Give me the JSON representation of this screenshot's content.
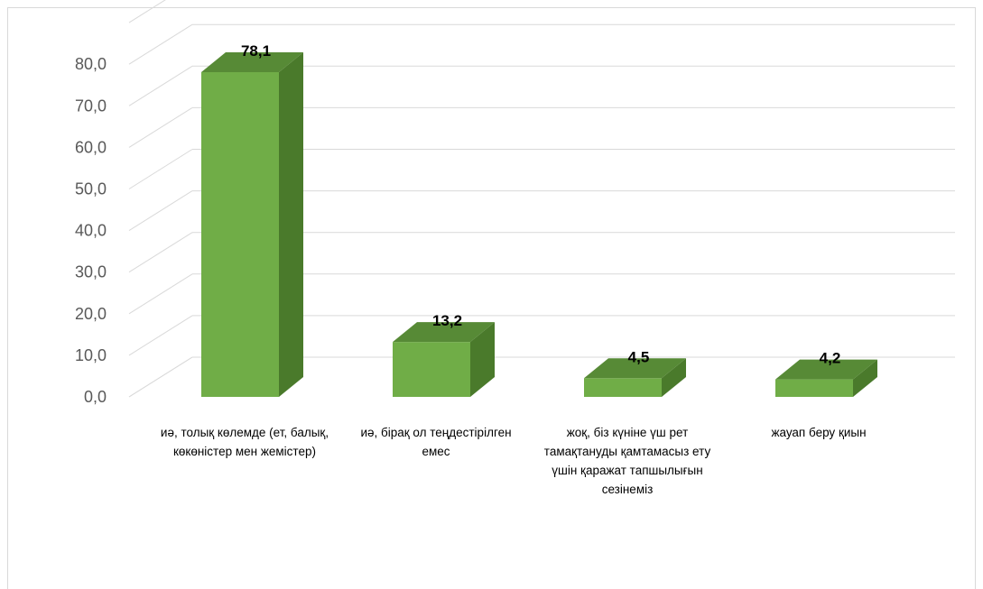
{
  "chart_data": {
    "type": "bar",
    "title": "",
    "xlabel": "",
    "ylabel": "",
    "ylim": [
      0,
      80
    ],
    "yticks": [
      "0,0",
      "10,0",
      "20,0",
      "30,0",
      "40,0",
      "50,0",
      "60,0",
      "70,0",
      "80,0"
    ],
    "grid": true,
    "legend": "none",
    "three_d": true,
    "categories": [
      "иә, толық көлемде (ет, балық, көкөністер мен жемістер)",
      "иә, бірақ ол теңдестірілген емес",
      "жоқ, біз күніне үш рет тамақтануды қамтамасыз ету үшін қаражат тапшылығын сезінеміз",
      "жауап беру қиын"
    ],
    "values": [
      78.1,
      13.2,
      4.5,
      4.2
    ],
    "value_labels": [
      "78,1",
      "13,2",
      "4,5",
      "4,2"
    ],
    "colors": {
      "bar_front": "#70ad47",
      "bar_side": "#4a7a2b",
      "bar_top": "#578a36",
      "grid": "#d9d9d9",
      "axis_text": "#595959"
    }
  }
}
